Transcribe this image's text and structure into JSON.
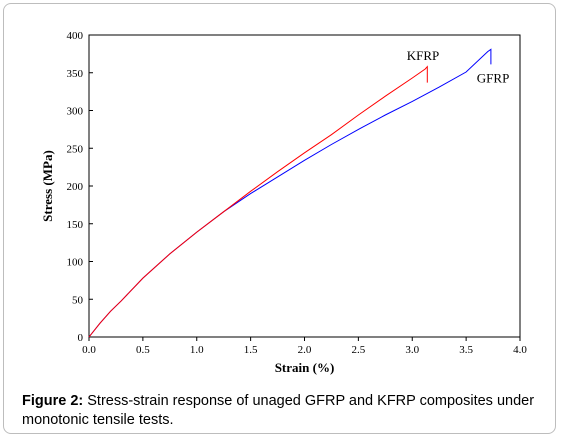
{
  "caption": {
    "label": "Figure 2:",
    "text": " Stress-strain response of unaged GFRP and KFRP composites under monotonic tensile tests."
  },
  "chart_data": {
    "type": "line",
    "title": "",
    "xlabel": "Strain (%)",
    "ylabel": "Stress (MPa)",
    "xlim": [
      0,
      4
    ],
    "ylim": [
      0,
      400
    ],
    "x_ticks": [
      "0.0",
      "0.5",
      "1.0",
      "1.5",
      "2.0",
      "2.5",
      "3.0",
      "3.5",
      "4.0"
    ],
    "y_ticks": [
      "0",
      "50",
      "100",
      "150",
      "200",
      "250",
      "300",
      "350",
      "400"
    ],
    "grid": false,
    "legend": "none",
    "series": [
      {
        "name": "KFRP",
        "color": "#ff0000",
        "x": [
          0,
          0.1,
          0.2,
          0.3,
          0.5,
          0.75,
          1.0,
          1.25,
          1.5,
          1.75,
          2.0,
          2.25,
          2.5,
          2.75,
          3.0,
          3.12,
          3.14,
          3.14
        ],
        "y": [
          0,
          18,
          34,
          48,
          78,
          110,
          139,
          166,
          193,
          219,
          244,
          268,
          294,
          319,
          343,
          355,
          358,
          337
        ]
      },
      {
        "name": "GFRP",
        "color": "#0000ff",
        "x": [
          0,
          0.1,
          0.2,
          0.3,
          0.5,
          0.75,
          1.0,
          1.25,
          1.5,
          1.75,
          2.0,
          2.25,
          2.5,
          2.75,
          3.0,
          3.25,
          3.5,
          3.7,
          3.73,
          3.73
        ],
        "y": [
          0,
          18,
          34,
          48,
          78,
          110,
          139,
          166,
          190,
          212,
          234,
          255,
          275,
          294,
          312,
          331,
          351,
          378,
          381,
          361
        ]
      }
    ],
    "annotations": [
      {
        "text": "KFRP",
        "x": 3.1,
        "y": 367
      },
      {
        "text": "GFRP",
        "x": 3.75,
        "y": 337
      }
    ]
  }
}
